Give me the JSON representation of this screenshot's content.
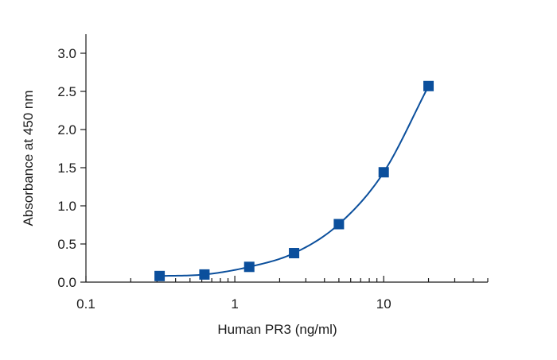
{
  "chart_data": {
    "type": "scatter",
    "title": "",
    "xlabel": "Human PR3 (ng/ml)",
    "ylabel": "Absorbance at 450 nm",
    "xscale": "log",
    "xlim": [
      0.1,
      50
    ],
    "ylim": [
      0,
      3.25
    ],
    "grid": false,
    "x_ticks": [
      0.1,
      1,
      10
    ],
    "x_tick_labels": [
      "0.1",
      "1",
      "10"
    ],
    "y_ticks": [
      0,
      0.5,
      1.0,
      1.5,
      2.0,
      2.5,
      3.0
    ],
    "y_tick_labels": [
      "0.0",
      "0.5",
      "1.0",
      "1.5",
      "2.0",
      "2.5",
      "3.0"
    ],
    "series": [
      {
        "x": [
          0.3125,
          0.625,
          1.25,
          2.5,
          5,
          10,
          20
        ],
        "y": [
          0.08,
          0.1,
          0.2,
          0.38,
          0.76,
          1.44,
          2.57
        ],
        "marker": "square",
        "color": "#0b4f9c",
        "fit_line": true
      }
    ]
  }
}
